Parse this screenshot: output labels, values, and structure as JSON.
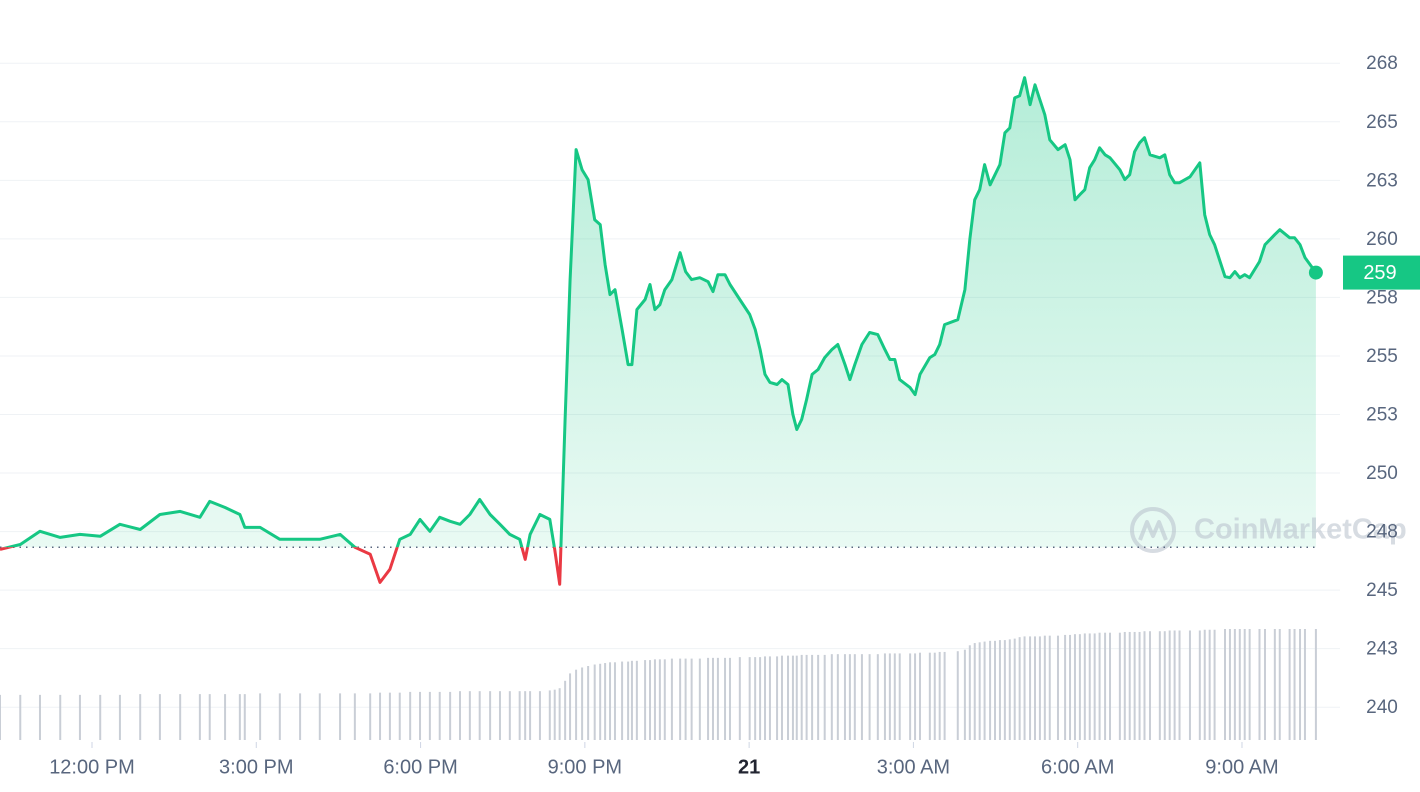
{
  "chart_data": {
    "type": "line",
    "watermark": "CoinMarketCap",
    "baseline": 246.83,
    "baseline_color": "#58667e",
    "up_color": "#16c784",
    "down_color": "#ea3943",
    "last_value_label": "259",
    "xlim": [
      -1.68,
      22.79
    ],
    "xticks": [
      {
        "value": 0,
        "label": "12:00 PM"
      },
      {
        "value": 3,
        "label": "3:00 PM"
      },
      {
        "value": 6,
        "label": "6:00 PM"
      },
      {
        "value": 9,
        "label": "9:00 PM"
      },
      {
        "value": 12,
        "label": "21"
      },
      {
        "value": 15,
        "label": "3:00 AM"
      },
      {
        "value": 18,
        "label": "6:00 AM"
      },
      {
        "value": 21,
        "label": "9:00 AM"
      }
    ],
    "ylim": [
      238.6,
      270.2
    ],
    "yticks": [
      240,
      {
        "value": 242.5,
        "label": "243"
      },
      245,
      {
        "value": 247.5,
        "label": "248"
      },
      250,
      {
        "value": 252.5,
        "label": "253"
      },
      255,
      {
        "value": 257.5,
        "label": "258"
      },
      260,
      {
        "value": 262.5,
        "label": "263"
      },
      265,
      {
        "value": 267.5,
        "label": "268"
      }
    ],
    "y2lim": [
      0,
      100
    ],
    "grid": true,
    "x": [
      -1.68,
      -1.31,
      -0.95,
      -0.58,
      -0.22,
      0.15,
      0.51,
      0.88,
      1.24,
      1.61,
      1.97,
      2.15,
      2.43,
      2.7,
      2.79,
      3.07,
      3.43,
      3.8,
      4.16,
      4.53,
      4.8,
      5.08,
      5.26,
      5.44,
      5.62,
      5.81,
      5.99,
      6.17,
      6.35,
      6.54,
      6.72,
      6.9,
      7.08,
      7.27,
      7.45,
      7.63,
      7.81,
      7.91,
      8.0,
      8.18,
      8.36,
      8.45,
      8.54,
      8.64,
      8.73,
      8.84,
      8.95,
      9.06,
      9.18,
      9.28,
      9.37,
      9.46,
      9.55,
      9.68,
      9.79,
      9.86,
      9.95,
      10.1,
      10.19,
      10.28,
      10.37,
      10.46,
      10.59,
      10.74,
      10.84,
      10.95,
      11.1,
      11.25,
      11.34,
      11.43,
      11.56,
      11.65,
      11.83,
      12.01,
      12.11,
      12.2,
      12.29,
      12.38,
      12.51,
      12.6,
      12.71,
      12.8,
      12.87,
      12.96,
      13.05,
      13.15,
      13.26,
      13.38,
      13.51,
      13.62,
      13.75,
      13.84,
      13.93,
      14.06,
      14.2,
      14.35,
      14.48,
      14.57,
      14.66,
      14.75,
      14.94,
      15.03,
      15.12,
      15.3,
      15.39,
      15.48,
      15.57,
      15.81,
      15.94,
      16.03,
      16.12,
      16.21,
      16.3,
      16.4,
      16.49,
      16.58,
      16.67,
      16.76,
      16.85,
      16.94,
      17.03,
      17.13,
      17.22,
      17.31,
      17.4,
      17.49,
      17.64,
      17.77,
      17.86,
      17.95,
      18.04,
      18.13,
      18.22,
      18.31,
      18.4,
      18.5,
      18.59,
      18.77,
      18.86,
      18.95,
      19.04,
      19.13,
      19.22,
      19.32,
      19.5,
      19.59,
      19.68,
      19.77,
      19.86,
      20.05,
      20.23,
      20.32,
      20.41,
      20.5,
      20.69,
      20.78,
      20.87,
      20.96,
      21.05,
      21.14,
      21.32,
      21.42,
      21.6,
      21.69,
      21.87,
      21.96,
      22.06,
      22.15,
      22.35
    ],
    "series": [
      {
        "color": "#16c784",
        "values": [
          246.74,
          246.95,
          247.51,
          247.25,
          247.38,
          247.3,
          247.81,
          247.59,
          248.23,
          248.36,
          248.11,
          248.79,
          248.53,
          248.23,
          247.68,
          247.68,
          247.17,
          247.17,
          247.17,
          247.38,
          246.83,
          246.53,
          245.33,
          245.89,
          247.17,
          247.38,
          248.02,
          247.51,
          248.11,
          247.94,
          247.81,
          248.23,
          248.87,
          248.23,
          247.81,
          247.38,
          247.17,
          246.31,
          247.38,
          248.23,
          248.02,
          246.74,
          245.25,
          252.29,
          258.26,
          263.81,
          262.95,
          262.53,
          260.82,
          260.61,
          258.9,
          257.62,
          257.83,
          256.13,
          254.63,
          254.63,
          256.98,
          257.41,
          258.05,
          256.98,
          257.19,
          257.83,
          258.26,
          259.41,
          258.6,
          258.26,
          258.34,
          258.17,
          257.75,
          258.47,
          258.47,
          258.05,
          257.41,
          256.77,
          256.13,
          255.27,
          254.21,
          253.87,
          253.78,
          253.99,
          253.78,
          252.5,
          251.86,
          252.29,
          253.14,
          254.21,
          254.42,
          254.93,
          255.27,
          255.49,
          254.63,
          253.99,
          254.63,
          255.49,
          256.0,
          255.91,
          255.27,
          254.85,
          254.85,
          253.99,
          253.65,
          253.35,
          254.21,
          254.93,
          255.06,
          255.49,
          256.34,
          256.55,
          257.83,
          259.97,
          261.67,
          262.1,
          263.17,
          262.31,
          262.74,
          263.17,
          264.53,
          264.74,
          266.02,
          266.11,
          266.88,
          265.73,
          266.58,
          265.94,
          265.3,
          264.23,
          263.81,
          264.02,
          263.38,
          261.67,
          261.89,
          262.1,
          263.04,
          263.38,
          263.89,
          263.59,
          263.46,
          262.95,
          262.53,
          262.74,
          263.72,
          264.1,
          264.32,
          263.59,
          263.46,
          263.59,
          262.74,
          262.4,
          262.4,
          262.65,
          263.25,
          261.03,
          260.18,
          259.75,
          258.39,
          258.34,
          258.6,
          258.34,
          258.47,
          258.34,
          259.03,
          259.75,
          260.18,
          260.39,
          260.05,
          260.05,
          259.75,
          259.2,
          258.56
        ]
      },
      {
        "type": "bar",
        "axis": "y2",
        "color": "#c9ced6",
        "values": [
          6.1,
          6.1,
          6.1,
          6.1,
          6.1,
          6.1,
          6.1,
          6.2,
          6.2,
          6.2,
          6.2,
          6.2,
          6.2,
          6.2,
          6.2,
          6.3,
          6.3,
          6.3,
          6.3,
          6.3,
          6.3,
          6.3,
          6.4,
          6.4,
          6.4,
          6.5,
          6.5,
          6.5,
          6.5,
          6.5,
          6.6,
          6.6,
          6.6,
          6.6,
          6.6,
          6.6,
          6.6,
          6.6,
          6.6,
          6.6,
          6.7,
          6.8,
          7.0,
          8.0,
          9.0,
          9.5,
          9.8,
          10.0,
          10.2,
          10.3,
          10.4,
          10.5,
          10.5,
          10.6,
          10.6,
          10.7,
          10.7,
          10.8,
          10.8,
          10.9,
          10.9,
          10.9,
          11.0,
          11.0,
          11.0,
          11.0,
          11.0,
          11.1,
          11.1,
          11.1,
          11.1,
          11.1,
          11.2,
          11.2,
          11.2,
          11.2,
          11.3,
          11.3,
          11.3,
          11.4,
          11.4,
          11.4,
          11.4,
          11.5,
          11.5,
          11.5,
          11.5,
          11.5,
          11.6,
          11.6,
          11.6,
          11.6,
          11.6,
          11.6,
          11.6,
          11.6,
          11.7,
          11.7,
          11.7,
          11.7,
          11.7,
          11.7,
          11.8,
          11.8,
          11.8,
          11.9,
          11.9,
          12.0,
          12.2,
          12.8,
          13.1,
          13.2,
          13.3,
          13.4,
          13.4,
          13.5,
          13.5,
          13.6,
          13.7,
          13.9,
          14.0,
          14.0,
          14.0,
          14.0,
          14.1,
          14.1,
          14.1,
          14.2,
          14.2,
          14.3,
          14.3,
          14.4,
          14.4,
          14.4,
          14.5,
          14.5,
          14.5,
          14.5,
          14.6,
          14.6,
          14.6,
          14.6,
          14.7,
          14.7,
          14.7,
          14.7,
          14.8,
          14.8,
          14.8,
          14.8,
          14.8,
          14.9,
          14.9,
          14.9,
          15.0,
          15.0,
          15.0,
          15.0,
          15.0,
          15.0,
          15.0,
          15.0,
          15.0,
          15.0,
          15.0,
          15.0,
          15.0,
          15.0,
          15.0
        ]
      }
    ]
  }
}
